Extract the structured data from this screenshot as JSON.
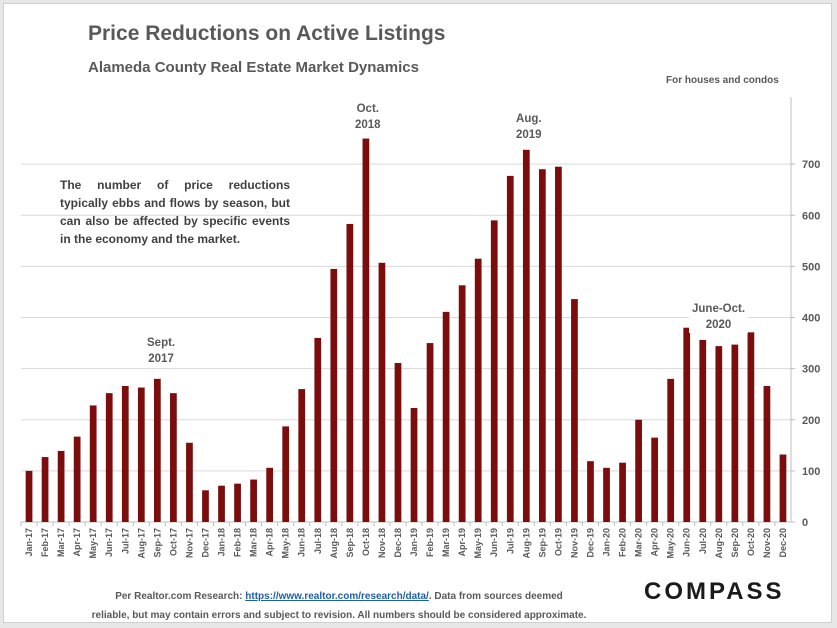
{
  "title": "Price Reductions on Active Listings",
  "subtitle": "Alameda County Real Estate Market Dynamics",
  "note": "For houses and condos",
  "description": "The number of price reductions typically ebbs and flows by season, but can also be affected by specific events in the economy and the market.",
  "annotations": {
    "sept2017": [
      "Sept.",
      "2017"
    ],
    "oct2018": [
      "Oct.",
      "2018"
    ],
    "aug2019": [
      "Aug.",
      "2019"
    ],
    "june_oct2020": [
      "June-Oct.",
      "2020"
    ]
  },
  "footer": {
    "prefix": "Per Realtor.com Research: ",
    "link_text": "https://www.realtor.com/research/data/",
    "suffix": ". Data from sources deemed",
    "line2": "reliable, but may contain errors and subject to revision. All numbers should be considered approximate."
  },
  "logo": "COMPASS",
  "colors": {
    "bar": "#7b0d0d",
    "grid": "#d9d9d9",
    "axis": "#bfbfbf",
    "text": "#595959"
  },
  "chart_data": {
    "type": "bar",
    "title": "Price Reductions on Active Listings",
    "categories": [
      "Jan-17",
      "Feb-17",
      "Mar-17",
      "Apr-17",
      "May-17",
      "Jun-17",
      "Jul-17",
      "Aug-17",
      "Sep-17",
      "Oct-17",
      "Nov-17",
      "Dec-17",
      "Jan-18",
      "Feb-18",
      "Mar-18",
      "Apr-18",
      "May-18",
      "Jun-18",
      "Jul-18",
      "Aug-18",
      "Sep-18",
      "Oct-18",
      "Nov-18",
      "Dec-18",
      "Jan-19",
      "Feb-19",
      "Mar-19",
      "Apr-19",
      "May-19",
      "Jun-19",
      "Jul-19",
      "Aug-19",
      "Sep-19",
      "Oct-19",
      "Nov-19",
      "Dec-19",
      "Jan-20",
      "Feb-20",
      "Mar-20",
      "Apr-20",
      "May-20",
      "Jun-20",
      "Jul-20",
      "Aug-20",
      "Sep-20",
      "Oct-20",
      "Nov-20",
      "Dec-20"
    ],
    "values": [
      100,
      127,
      139,
      167,
      228,
      252,
      266,
      263,
      280,
      252,
      155,
      62,
      71,
      75,
      83,
      106,
      187,
      260,
      360,
      495,
      583,
      750,
      507,
      311,
      223,
      350,
      411,
      463,
      515,
      590,
      677,
      728,
      690,
      695,
      436,
      119,
      106,
      116,
      200,
      165,
      280,
      380,
      356,
      344,
      347,
      371,
      266,
      132
    ],
    "ylim": [
      0,
      800
    ],
    "yticks": [
      0,
      100,
      200,
      300,
      400,
      500,
      600,
      700
    ],
    "y_axis_side": "right",
    "grid": true,
    "legend": false
  }
}
